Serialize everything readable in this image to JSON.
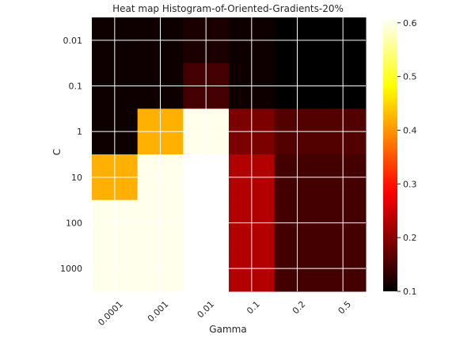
{
  "chart_data": {
    "type": "heatmap",
    "title": "Heat map Histogram-of-Oriented-Gradients-20%",
    "xlabel": "Gamma",
    "ylabel": "C",
    "x_categories": [
      "0.0001",
      "0.001",
      "0.01",
      "0.1",
      "0.2",
      "0.5"
    ],
    "y_categories": [
      "0.01",
      "0.1",
      "1",
      "10",
      "100",
      "1000"
    ],
    "values": [
      [
        0.11,
        0.11,
        0.12,
        0.11,
        0.1,
        0.1
      ],
      [
        0.11,
        0.11,
        0.15,
        0.11,
        0.1,
        0.1
      ],
      [
        0.11,
        0.42,
        0.6,
        0.19,
        0.16,
        0.16
      ],
      [
        0.42,
        0.6,
        null,
        0.23,
        0.15,
        0.15
      ],
      [
        0.6,
        0.6,
        null,
        0.23,
        0.15,
        0.15
      ],
      [
        0.6,
        0.6,
        null,
        0.23,
        0.15,
        0.15
      ]
    ],
    "colormap": "hot",
    "vmin": 0.1,
    "vmax": 0.61,
    "colorbar_ticks": [
      "0.1",
      "0.2",
      "0.3",
      "0.4",
      "0.5",
      "0.6"
    ],
    "grid": true,
    "missing_color": "#ffffff"
  }
}
